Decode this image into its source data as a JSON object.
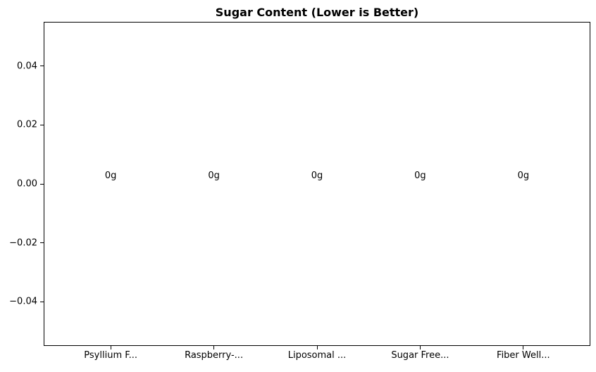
{
  "chart_data": {
    "type": "bar",
    "title": "Sugar Content (Lower is Better)",
    "categories": [
      "Psyllium F...",
      "Raspberry-...",
      "Liposomal ...",
      "Sugar Free...",
      "Fiber Well..."
    ],
    "values": [
      0,
      0,
      0,
      0,
      0
    ],
    "bar_labels": [
      "0g",
      "0g",
      "0g",
      "0g",
      "0g"
    ],
    "xlabel": "",
    "ylabel": "",
    "yticks": [
      0.04,
      0.02,
      0,
      -0.02,
      -0.04
    ],
    "ytick_labels": [
      "0.04",
      "0.02",
      "0.00",
      "−0.02",
      "−0.04"
    ],
    "ylim": [
      -0.055,
      0.055
    ],
    "xlim": [
      -0.65,
      4.65
    ],
    "bar_width_fraction": 0.8,
    "grid": false,
    "legend": null,
    "text_color": "#000000",
    "axis_color": "#000000",
    "background_color": "#ffffff"
  }
}
